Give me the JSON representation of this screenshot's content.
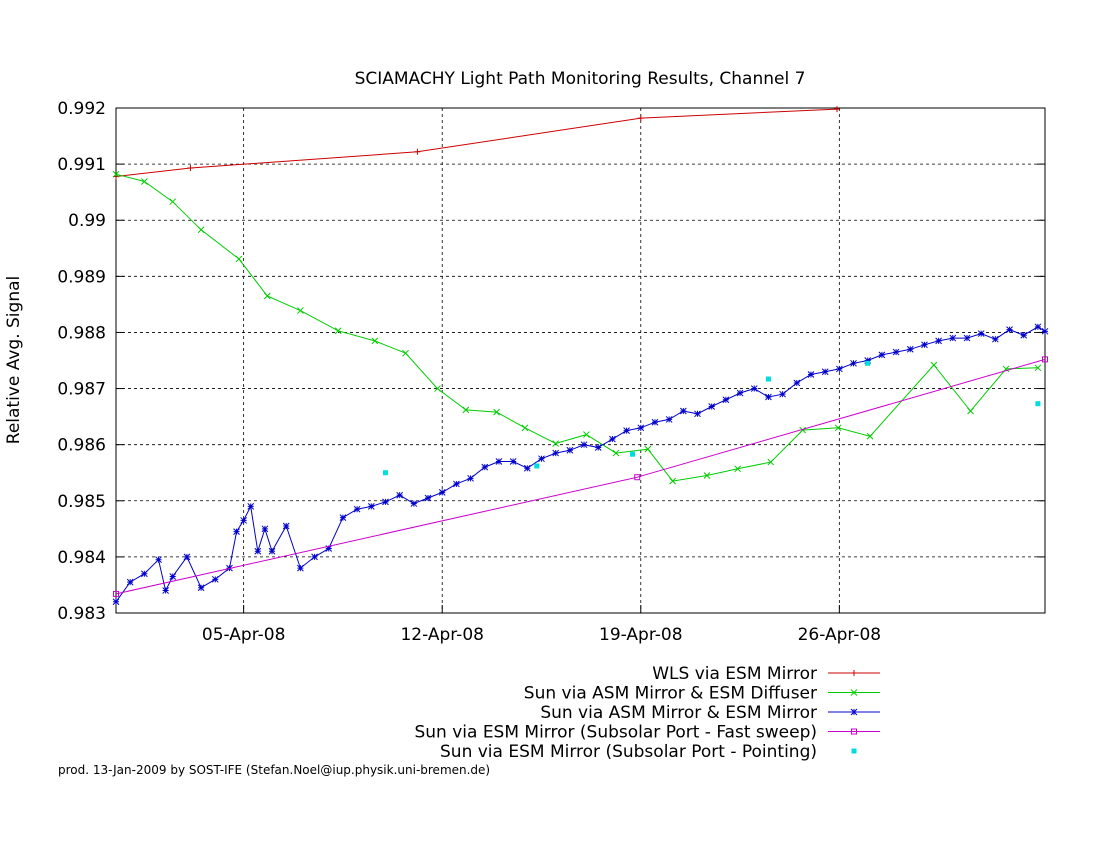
{
  "footer": "prod. 13-Jan-2009 by SOST-IFE (Stefan.Noel@iup.physik.uni-bremen.de)",
  "chart_data": {
    "type": "line",
    "title": "SCIAMACHY Light Path Monitoring Results, Channel 7",
    "xlabel": "",
    "ylabel": "Relative Avg. Signal",
    "xlim": [
      "2008-03-31T12:00",
      "2008-05-03T06:00"
    ],
    "ylim": [
      0.983,
      0.992
    ],
    "x_ticks": [
      "2008-04-05",
      "2008-04-12",
      "2008-04-19",
      "2008-04-26"
    ],
    "x_tick_labels": [
      "05-Apr-08",
      "12-Apr-08",
      "19-Apr-08",
      "26-Apr-08"
    ],
    "y_ticks": [
      0.983,
      0.984,
      0.985,
      0.986,
      0.987,
      0.988,
      0.989,
      0.99,
      0.991,
      0.992
    ],
    "y_tick_labels": [
      "0.983",
      "0.984",
      "0.985",
      "0.986",
      "0.987",
      "0.988",
      "0.989",
      "0.99",
      "0.991",
      "0.992"
    ],
    "grid": true,
    "legend_position": "bottom-right",
    "series": [
      {
        "name": "WLS via ESM Mirror",
        "color": "#cc0000",
        "marker": "plus",
        "line": true,
        "x": [
          "2008-03-31T12:00",
          "2008-04-03T03:00",
          "2008-04-11T03:00",
          "2008-04-19T00:00",
          "2008-04-25T22:00"
        ],
        "y": [
          0.99078,
          0.99093,
          0.99122,
          0.99182,
          0.99198
        ]
      },
      {
        "name": "Sun via ASM Mirror & ESM Diffuser",
        "color": "#00cc00",
        "marker": "cross",
        "line": true,
        "x": [
          "2008-03-31T12:00",
          "2008-04-01T12:00",
          "2008-04-02T12:00",
          "2008-04-03T12:00",
          "2008-04-04T20:00",
          "2008-04-05T20:00",
          "2008-04-07T00:00",
          "2008-04-08T08:00",
          "2008-04-09T15:00",
          "2008-04-10T17:00",
          "2008-04-11T20:00",
          "2008-04-12T20:00",
          "2008-04-13T22:00",
          "2008-04-14T22:00",
          "2008-04-16T00:00",
          "2008-04-17T02:00",
          "2008-04-18T03:00",
          "2008-04-19T06:00",
          "2008-04-20T03:00",
          "2008-04-21T08:00",
          "2008-04-22T10:00",
          "2008-04-23T14:00",
          "2008-04-24T17:00",
          "2008-04-25T23:00",
          "2008-04-27T02:00",
          "2008-04-29T08:00",
          "2008-04-30T15:00",
          "2008-05-01T21:00",
          "2008-05-03T00:00"
        ],
        "y": [
          0.99082,
          0.99069,
          0.99033,
          0.98983,
          0.98931,
          0.98865,
          0.98839,
          0.98803,
          0.98785,
          0.98763,
          0.987,
          0.98662,
          0.98658,
          0.9863,
          0.98602,
          0.98618,
          0.98585,
          0.98592,
          0.98535,
          0.98545,
          0.98557,
          0.98569,
          0.98626,
          0.9863,
          0.98615,
          0.98742,
          0.9866,
          0.98735,
          0.98737
        ]
      },
      {
        "name": "Sun via ASM Mirror & ESM Mirror",
        "color": "#0000cc",
        "marker": "star",
        "line": true,
        "x": [
          "2008-03-31T12:00",
          "2008-04-01T00:00",
          "2008-04-01T12:00",
          "2008-04-02T00:00",
          "2008-04-02T06:00",
          "2008-04-02T12:00",
          "2008-04-03T00:00",
          "2008-04-03T12:00",
          "2008-04-04T00:00",
          "2008-04-04T12:00",
          "2008-04-04T18:00",
          "2008-04-05T00:00",
          "2008-04-05T06:00",
          "2008-04-05T12:00",
          "2008-04-05T18:00",
          "2008-04-06T00:00",
          "2008-04-06T12:00",
          "2008-04-07T00:00",
          "2008-04-07T12:00",
          "2008-04-08T00:00",
          "2008-04-08T12:00",
          "2008-04-09T00:00",
          "2008-04-09T12:00",
          "2008-04-10T00:00",
          "2008-04-10T12:00",
          "2008-04-11T00:00",
          "2008-04-11T12:00",
          "2008-04-12T00:00",
          "2008-04-12T12:00",
          "2008-04-13T00:00",
          "2008-04-13T12:00",
          "2008-04-14T00:00",
          "2008-04-14T12:00",
          "2008-04-15T00:00",
          "2008-04-15T12:00",
          "2008-04-16T00:00",
          "2008-04-16T12:00",
          "2008-04-17T00:00",
          "2008-04-17T12:00",
          "2008-04-18T00:00",
          "2008-04-18T12:00",
          "2008-04-19T00:00",
          "2008-04-19T12:00",
          "2008-04-20T00:00",
          "2008-04-20T12:00",
          "2008-04-21T00:00",
          "2008-04-21T12:00",
          "2008-04-22T00:00",
          "2008-04-22T12:00",
          "2008-04-23T00:00",
          "2008-04-23T12:00",
          "2008-04-24T00:00",
          "2008-04-24T12:00",
          "2008-04-25T00:00",
          "2008-04-25T12:00",
          "2008-04-26T00:00",
          "2008-04-26T12:00",
          "2008-04-27T00:00",
          "2008-04-27T12:00",
          "2008-04-28T00:00",
          "2008-04-28T12:00",
          "2008-04-29T00:00",
          "2008-04-29T12:00",
          "2008-04-30T00:00",
          "2008-04-30T12:00",
          "2008-05-01T00:00",
          "2008-05-01T12:00",
          "2008-05-02T00:00",
          "2008-05-02T12:00",
          "2008-05-03T00:00",
          "2008-05-03T06:00"
        ],
        "y": [
          0.9832,
          0.98355,
          0.9837,
          0.98395,
          0.9834,
          0.98365,
          0.984,
          0.98345,
          0.9836,
          0.9838,
          0.98445,
          0.98465,
          0.9849,
          0.9841,
          0.9845,
          0.9841,
          0.98455,
          0.9838,
          0.984,
          0.98415,
          0.9847,
          0.98485,
          0.9849,
          0.98498,
          0.9851,
          0.98495,
          0.98505,
          0.98515,
          0.9853,
          0.9854,
          0.9856,
          0.9857,
          0.9857,
          0.98558,
          0.98575,
          0.98585,
          0.9859,
          0.986,
          0.98595,
          0.9861,
          0.98625,
          0.9863,
          0.9864,
          0.98645,
          0.9866,
          0.98655,
          0.98668,
          0.9868,
          0.98692,
          0.987,
          0.98685,
          0.9869,
          0.9871,
          0.98725,
          0.9873,
          0.98735,
          0.98745,
          0.9875,
          0.9876,
          0.98765,
          0.9877,
          0.98778,
          0.98785,
          0.9879,
          0.9879,
          0.98798,
          0.98788,
          0.98805,
          0.98795,
          0.9881,
          0.98802
        ]
      },
      {
        "name": "Sun via ESM Mirror (Subsolar Port - Fast sweep)",
        "color": "#cc00cc",
        "marker": "square",
        "line": true,
        "x": [
          "2008-03-31T12:00",
          "2008-04-18T21:00",
          "2008-05-03T06:00"
        ],
        "y": [
          0.98334,
          0.98542,
          0.98752
        ]
      },
      {
        "name": "Sun via ESM Mirror (Subsolar Port - Pointing)",
        "color": "#00dddd",
        "marker": "dot",
        "line": false,
        "x": [
          "2008-04-10T00:00",
          "2008-04-15T08:00",
          "2008-04-18T17:00",
          "2008-04-23T12:00",
          "2008-04-27T00:00",
          "2008-05-03T00:00"
        ],
        "y": [
          0.9855,
          0.98562,
          0.98583,
          0.98717,
          0.98745,
          0.98673
        ]
      }
    ]
  }
}
